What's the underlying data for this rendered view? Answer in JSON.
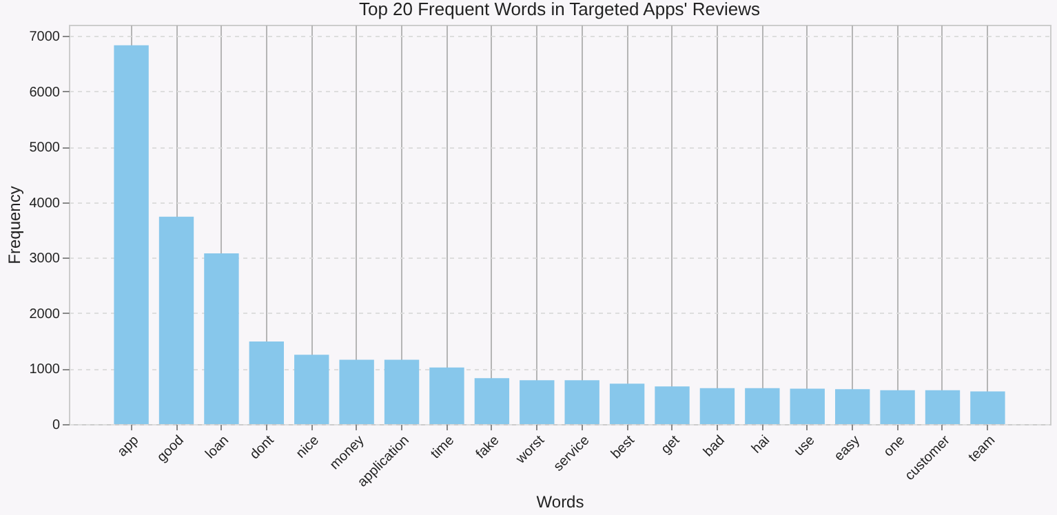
{
  "chart_data": {
    "type": "bar",
    "title": "Top 20 Frequent Words in Targeted Apps' Reviews",
    "xlabel": "Words",
    "ylabel": "Frequency",
    "categories": [
      "app",
      "good",
      "loan",
      "dont",
      "nice",
      "money",
      "application",
      "time",
      "fake",
      "worst",
      "service",
      "best",
      "get",
      "bad",
      "hai",
      "use",
      "easy",
      "one",
      "customer",
      "team"
    ],
    "values": [
      6830,
      3740,
      3080,
      1490,
      1250,
      1160,
      1160,
      1020,
      830,
      790,
      790,
      730,
      680,
      650,
      650,
      640,
      630,
      610,
      610,
      590
    ],
    "color": "#87c7eb",
    "ylim": [
      0,
      7200
    ],
    "yticks": [
      0,
      1000,
      2000,
      3000,
      4000,
      5000,
      6000,
      7000
    ],
    "grid": true
  }
}
